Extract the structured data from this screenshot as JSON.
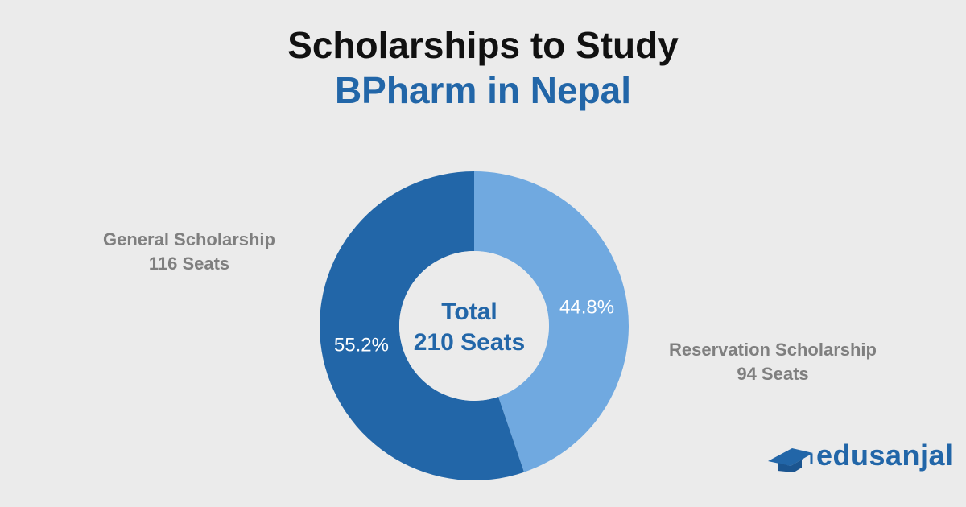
{
  "title": {
    "line1": "Scholarships to Study",
    "line2": "BPharm in Nepal"
  },
  "chart_data": {
    "type": "pie",
    "variant": "donut",
    "center_label": [
      "Total",
      "210 Seats"
    ],
    "slices": [
      {
        "label": "Reservation Scholarship",
        "sub_label": "94 Seats",
        "value": 94,
        "percent_label": "44.8%",
        "color": "#70a9e0"
      },
      {
        "label": "General Scholarship",
        "sub_label": "116 Seats",
        "value": 116,
        "percent_label": "55.2%",
        "color": "#2266a8"
      }
    ]
  },
  "colors": {
    "background": "#ebebeb",
    "title_dark": "#111111",
    "accent_blue": "#2266a8",
    "light_blue": "#70a9e0",
    "label_gray": "#7f7f7f"
  },
  "logo": {
    "text": "edusanjal",
    "icon": "graduation-cap-icon"
  }
}
